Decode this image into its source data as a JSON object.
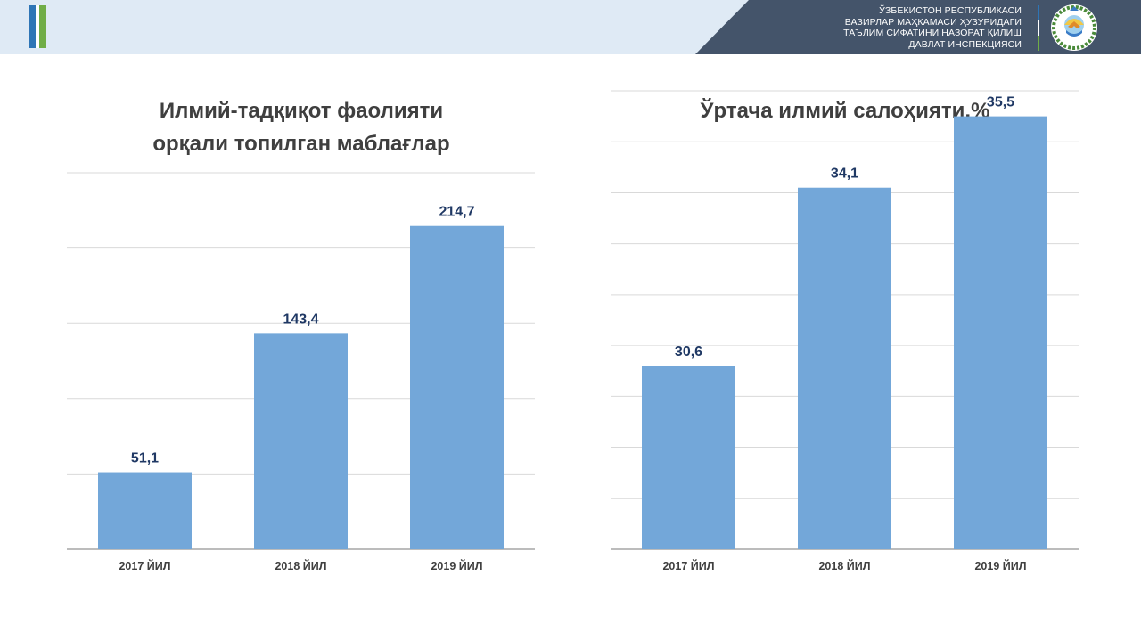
{
  "header": {
    "org_lines": [
      "ЎЗБЕКИСТОН РЕСПУБЛИКАСИ",
      "ВАЗИРЛАР МАҲКАМАСИ ҲУЗУРИДАГИ",
      "ТАЪЛИМ СИФАТИНИ НАЗОРАТ ҚИЛИШ",
      "ДАВЛАТ ИНСПЕКЦИЯСИ"
    ],
    "emblem_icon": "uzbekistan-emblem-icon",
    "colors": {
      "bar_bg": "#dfeaf5",
      "panel": "#44546a",
      "stripe_blue": "#2e75b6",
      "stripe_green": "#70ad47"
    }
  },
  "chart_data": [
    {
      "type": "bar",
      "title_lines": [
        "Илмий-тадқиқот фаолияти",
        "орқали топилган маблағлар"
      ],
      "categories": [
        "2017 ЙИЛ",
        "2018 ЙИЛ",
        "2019 ЙИЛ"
      ],
      "values": [
        51.1,
        143.4,
        214.7
      ],
      "value_labels": [
        "51,1",
        "143,4",
        "214,7"
      ],
      "ylim": [
        0,
        250
      ],
      "grid_step": 50,
      "grid": true,
      "bar_color": "#73a7d9"
    },
    {
      "type": "bar",
      "title_lines": [
        "Ўртача илмий салоҳияти,%"
      ],
      "categories": [
        "2017 ЙИЛ",
        "2018 ЙИЛ",
        "2019 ЙИЛ"
      ],
      "values": [
        30.6,
        34.1,
        35.5
      ],
      "value_labels": [
        "30,6",
        "34,1",
        "35,5"
      ],
      "ylim": [
        27,
        36
      ],
      "grid_step": 1,
      "grid": true,
      "bar_color": "#73a7d9"
    }
  ]
}
